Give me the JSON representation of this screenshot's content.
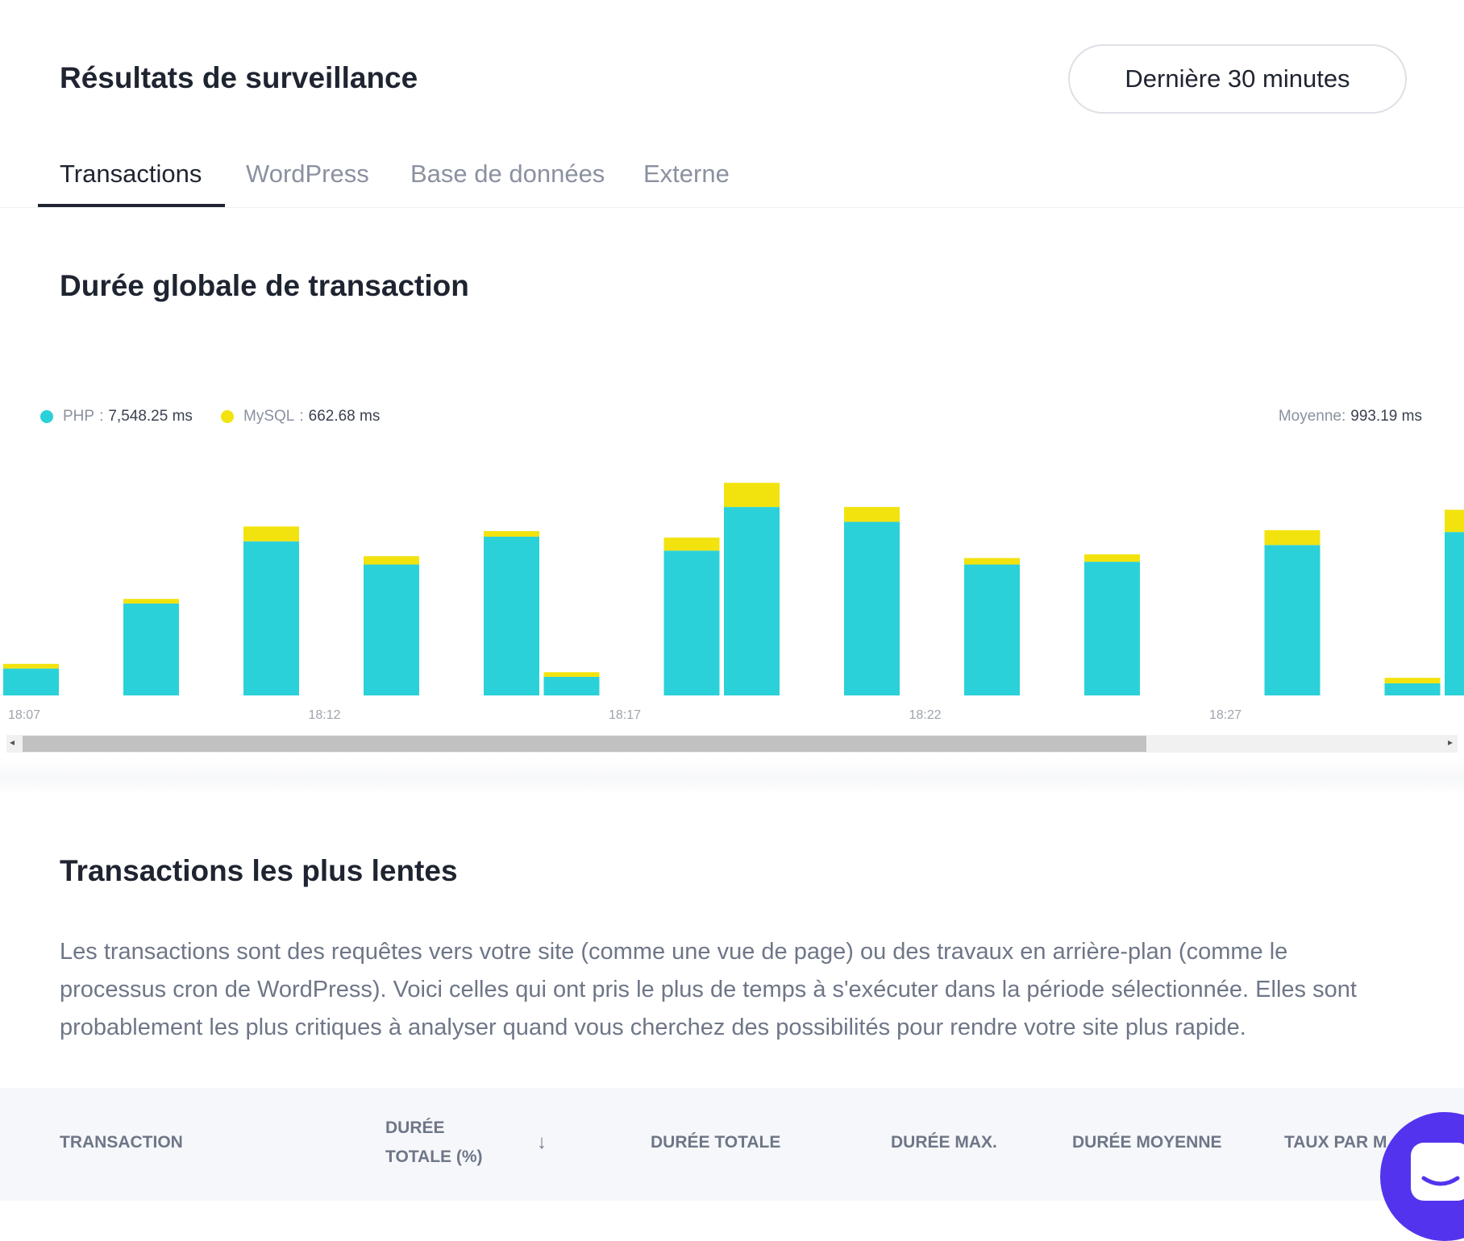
{
  "header": {
    "title": "Résultats de surveillance",
    "range_button": "Dernière 30 minutes"
  },
  "tabs": [
    {
      "label": "Transactions",
      "active": true
    },
    {
      "label": "WordPress"
    },
    {
      "label": "Base de données"
    },
    {
      "label": "Externe"
    }
  ],
  "chart_section": {
    "title": "Durée globale de transaction"
  },
  "chart_data": {
    "type": "bar",
    "stacked": true,
    "title": "Durée globale de transaction",
    "legend": [
      {
        "name": "PHP",
        "total": "7,548.25 ms",
        "color": "#2bd1d9"
      },
      {
        "name": "MySQL",
        "total": "662.68 ms",
        "color": "#f2e30f"
      }
    ],
    "average_label": "Moyenne:",
    "average_value": "993.19 ms",
    "x_ticks": [
      "18:07",
      "18:12",
      "18:17",
      "18:22",
      "18:27"
    ],
    "x_minutes_offset": [
      0,
      2,
      4,
      6,
      8,
      9,
      11,
      12,
      14,
      16,
      18,
      21,
      23,
      24
    ],
    "series": [
      {
        "name": "PHP",
        "values": [
          145,
          495,
          830,
          705,
          855,
          100,
          780,
          1015,
          935,
          705,
          720,
          810,
          65,
          880
        ]
      },
      {
        "name": "MySQL",
        "values": [
          25,
          25,
          80,
          45,
          30,
          25,
          70,
          130,
          80,
          35,
          40,
          80,
          30,
          120
        ]
      }
    ],
    "ylim": [
      0,
      1150
    ],
    "grid": false,
    "legend_position": "top-left"
  },
  "slow": {
    "title": "Transactions les plus lentes",
    "description": "Les transactions sont des requêtes vers votre site (comme une vue de page) ou des travaux en arrière-plan (comme le processus cron de WordPress). Voici celles qui ont pris le plus de temps à s'exécuter dans la période sélectionnée. Elles sont probablement les plus critiques à analyser quand vous cherchez des possibilités pour rendre votre site plus rapide.",
    "columns": [
      "TRANSACTION",
      "DURÉE TOTALE (%)",
      "DURÉE TOTALE",
      "DURÉE MAX.",
      "DURÉE MOYENNE",
      "TAUX PAR M"
    ],
    "sort_icon": "↓"
  }
}
